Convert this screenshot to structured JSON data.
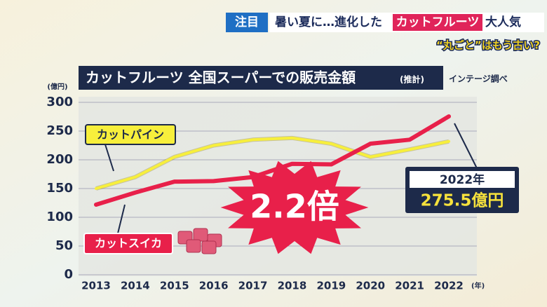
{
  "banner": {
    "tag": "注目",
    "headline_1": "暑い夏に…進化した",
    "headline_2": "カットフルーツ",
    "headline_3": "大人気",
    "subtitle": "“丸ごと”はもう古い?"
  },
  "chart_data": {
    "type": "line",
    "title": "カットフルーツ 全国スーパーでの販売金額",
    "title_note": "(推計)",
    "source": "インテージ調べ",
    "y_unit": "(億円)",
    "x_unit": "(年)",
    "categories": [
      "2013",
      "2014",
      "2015",
      "2016",
      "2017",
      "2018",
      "2019",
      "2020",
      "2021",
      "2022"
    ],
    "series": [
      {
        "name": "カットパイン",
        "color": "#f7ef3c",
        "values": [
          150,
          170,
          205,
          225,
          235,
          238,
          228,
          205,
          218,
          232
        ]
      },
      {
        "name": "カットスイカ",
        "color": "#e8204a",
        "values": [
          122,
          143,
          162,
          163,
          170,
          193,
          192,
          228,
          235,
          275.5
        ],
        "value_labels": [
          null,
          null,
          null,
          null,
          null,
          null,
          null,
          null,
          null,
          "275.5億円"
        ]
      }
    ],
    "ylim": [
      0,
      300
    ],
    "yticks": [
      0,
      50,
      100,
      150,
      200,
      250,
      300
    ],
    "grid": true,
    "annotations": {
      "ratio": "2.2倍",
      "last_year": "2022年"
    }
  }
}
